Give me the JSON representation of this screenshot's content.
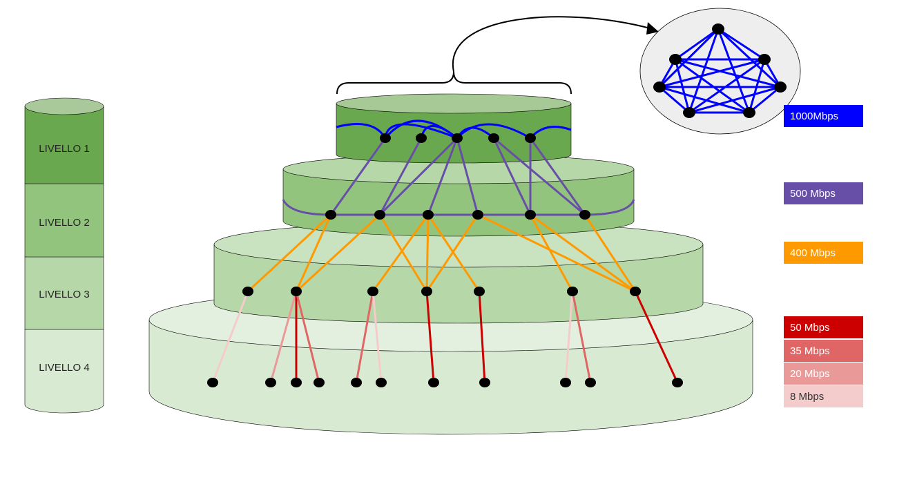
{
  "levels": [
    {
      "label": "LIVELLO 1",
      "color": "#6aa84f"
    },
    {
      "label": "LIVELLO 2",
      "color": "#93c47d"
    },
    {
      "label": "LIVELLO 3",
      "color": "#b6d7a8"
    },
    {
      "label": "LIVELLO 4",
      "color": "#d9ead3"
    }
  ],
  "legend": [
    {
      "label": "1000Mbps",
      "bg": "#0000ff",
      "fg": "#ffffff"
    },
    {
      "label": "500 Mbps",
      "bg": "#674ea7",
      "fg": "#ffffff"
    },
    {
      "label": "400 Mbps",
      "bg": "#ff9900",
      "fg": "#ffffff"
    },
    {
      "label": "50 Mbps",
      "bg": "#cc0000",
      "fg": "#ffffff"
    },
    {
      "label": "35 Mbps",
      "bg": "#e06666",
      "fg": "#ffffff"
    },
    {
      "label": "20 Mbps",
      "bg": "#ea9999",
      "fg": "#ffffff"
    },
    {
      "label": "8 Mbps",
      "bg": "#f4cccc",
      "fg": "#333333"
    }
  ],
  "link_colors": {
    "l1": "#0000ff",
    "l2": "#674ea7",
    "l3": "#ff9900",
    "c50": "#cc0000",
    "c35": "#e06666",
    "c20": "#ea9999",
    "c8": "#f4cccc"
  }
}
